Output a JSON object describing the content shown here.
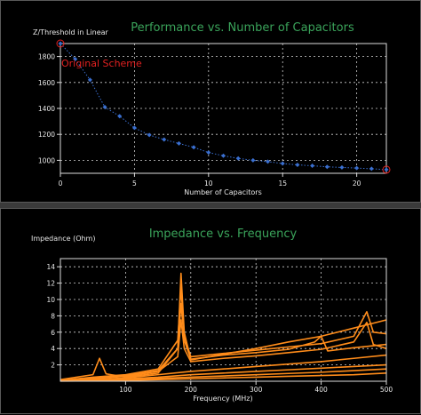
{
  "colors": {
    "title": "#3aa35a",
    "background": "#000000",
    "axis": "#dcdcdc",
    "grid": "#d0d0d0",
    "top_series": "#3a6fd0",
    "bottom_series": "#ff8c1a",
    "annotation": "#e02020"
  },
  "chart_data": [
    {
      "type": "line",
      "title": "Performance vs. Number of Capacitors",
      "xlabel": "Number of Capacitors",
      "ylabel": "Z/Threshold in Linear",
      "xlim": [
        0,
        22
      ],
      "ylim": [
        900,
        1900
      ],
      "xticks": [
        "0",
        "5",
        "10",
        "15",
        "20"
      ],
      "yticks": [
        "1000",
        "1200",
        "1400",
        "1600",
        "1800"
      ],
      "grid": true,
      "annotation": "Original Scheme",
      "series": [
        {
          "x": [
            0,
            1,
            2,
            3,
            4,
            5,
            6,
            7,
            8,
            9,
            10,
            11,
            12,
            13,
            14,
            15,
            16,
            17,
            18,
            19,
            20,
            21,
            22
          ],
          "values": [
            1900,
            1780,
            1620,
            1410,
            1340,
            1250,
            1195,
            1160,
            1130,
            1100,
            1060,
            1035,
            1015,
            1000,
            990,
            975,
            965,
            958,
            950,
            945,
            940,
            935,
            928
          ]
        }
      ],
      "highlight_points": [
        {
          "x": 0,
          "y": 1900
        },
        {
          "x": 22,
          "y": 928
        }
      ]
    },
    {
      "type": "line",
      "title": "Impedance vs. Frequency",
      "xlabel": "Frequency (MHz)",
      "ylabel": "Impedance (Ohm)",
      "xlim": [
        0,
        500
      ],
      "ylim": [
        0,
        15
      ],
      "xticks": [
        "100",
        "200",
        "300",
        "400",
        "500"
      ],
      "yticks": [
        "2",
        "4",
        "6",
        "8",
        "10",
        "12",
        "14"
      ],
      "grid": true,
      "series": [
        {
          "x": [
            0,
            50,
            60,
            70,
            100,
            150,
            180,
            185,
            190,
            200,
            250,
            300,
            350,
            400,
            450,
            500
          ],
          "values": [
            0.2,
            0.8,
            2.8,
            0.9,
            0.5,
            1.0,
            4.0,
            13.2,
            6.0,
            2.6,
            3.3,
            4.0,
            4.8,
            5.5,
            6.5,
            7.5
          ]
        },
        {
          "x": [
            0,
            50,
            100,
            150,
            180,
            185,
            190,
            200,
            250,
            300,
            350,
            400,
            450,
            470,
            480,
            500
          ],
          "values": [
            0.1,
            0.5,
            0.8,
            1.5,
            5.0,
            11.5,
            5.5,
            3.0,
            3.4,
            3.8,
            4.2,
            4.6,
            5.5,
            8.5,
            6.0,
            5.8
          ]
        },
        {
          "x": [
            0,
            50,
            100,
            150,
            180,
            185,
            190,
            200,
            250,
            300,
            350,
            390,
            400,
            410,
            450,
            500
          ],
          "values": [
            0.1,
            0.4,
            0.7,
            1.3,
            4.0,
            9.5,
            5.0,
            2.7,
            3.2,
            3.5,
            3.9,
            4.8,
            5.5,
            3.7,
            4.1,
            4.5
          ]
        },
        {
          "x": [
            0,
            50,
            100,
            150,
            180,
            185,
            190,
            200,
            250,
            300,
            350,
            400,
            450,
            470,
            480,
            500
          ],
          "values": [
            0.1,
            0.3,
            0.6,
            1.2,
            3.0,
            7.5,
            4.0,
            2.4,
            2.8,
            3.1,
            3.5,
            3.9,
            4.8,
            7.2,
            4.5,
            4.0
          ]
        },
        {
          "x": [
            0,
            50,
            100,
            150,
            200,
            250,
            300,
            350,
            400,
            450,
            500
          ],
          "values": [
            0.1,
            0.2,
            0.4,
            0.8,
            1.2,
            1.5,
            1.8,
            2.1,
            2.4,
            2.8,
            3.2
          ]
        },
        {
          "x": [
            0,
            50,
            100,
            150,
            200,
            250,
            300,
            350,
            400,
            450,
            500
          ],
          "values": [
            0.05,
            0.15,
            0.3,
            0.5,
            0.8,
            1.0,
            1.2,
            1.4,
            1.6,
            1.8,
            2.0
          ]
        },
        {
          "x": [
            0,
            50,
            100,
            150,
            200,
            250,
            300,
            350,
            400,
            450,
            500
          ],
          "values": [
            0.05,
            0.1,
            0.2,
            0.35,
            0.5,
            0.65,
            0.8,
            0.95,
            1.1,
            1.3,
            1.5
          ]
        },
        {
          "x": [
            0,
            50,
            100,
            150,
            200,
            250,
            300,
            350,
            400,
            450,
            500
          ],
          "values": [
            0.02,
            0.05,
            0.1,
            0.2,
            0.3,
            0.4,
            0.5,
            0.6,
            0.7,
            0.8,
            1.0
          ]
        }
      ]
    }
  ]
}
